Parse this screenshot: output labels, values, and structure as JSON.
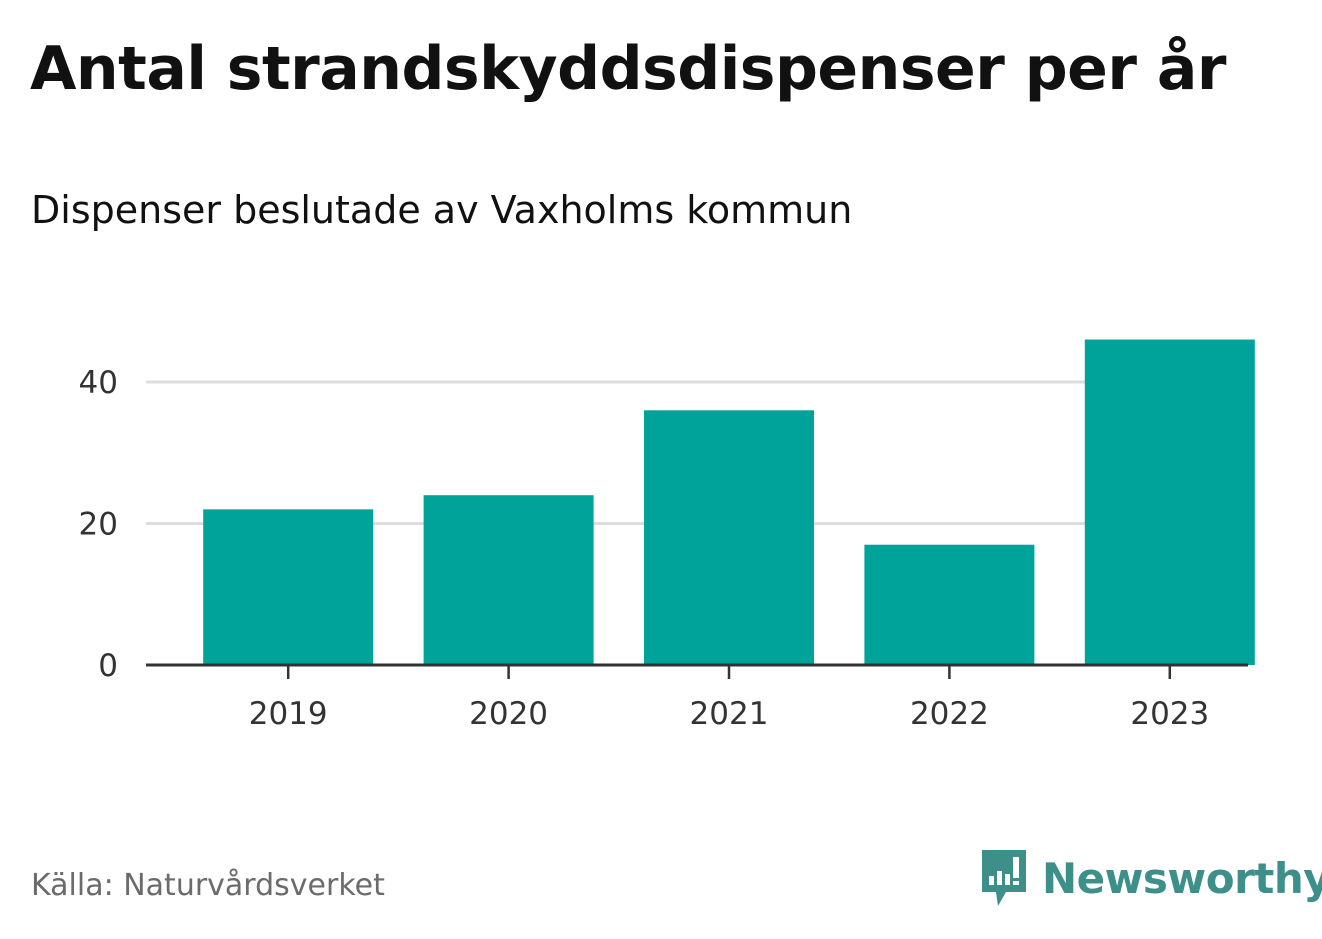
{
  "title": "Antal strandskyddsdispenser per år",
  "subtitle": "Dispenser beslutade av Vaxholms kommun",
  "source": "Källa: Naturvårdsverket",
  "brand": {
    "name": "Newsworthy",
    "icon": "newsworthy-logo-icon",
    "color": "#3d8f8a"
  },
  "chart_data": {
    "type": "bar",
    "categories": [
      "2019",
      "2020",
      "2021",
      "2022",
      "2023"
    ],
    "values": [
      22,
      24,
      36,
      17,
      46
    ],
    "xlabel": "",
    "ylabel": "",
    "ylim": [
      0,
      50
    ],
    "yticks": [
      0,
      20,
      40
    ],
    "grid": true,
    "bar_color": "#00a39a",
    "grid_color": "#dddddd",
    "axis_color": "#333333"
  }
}
